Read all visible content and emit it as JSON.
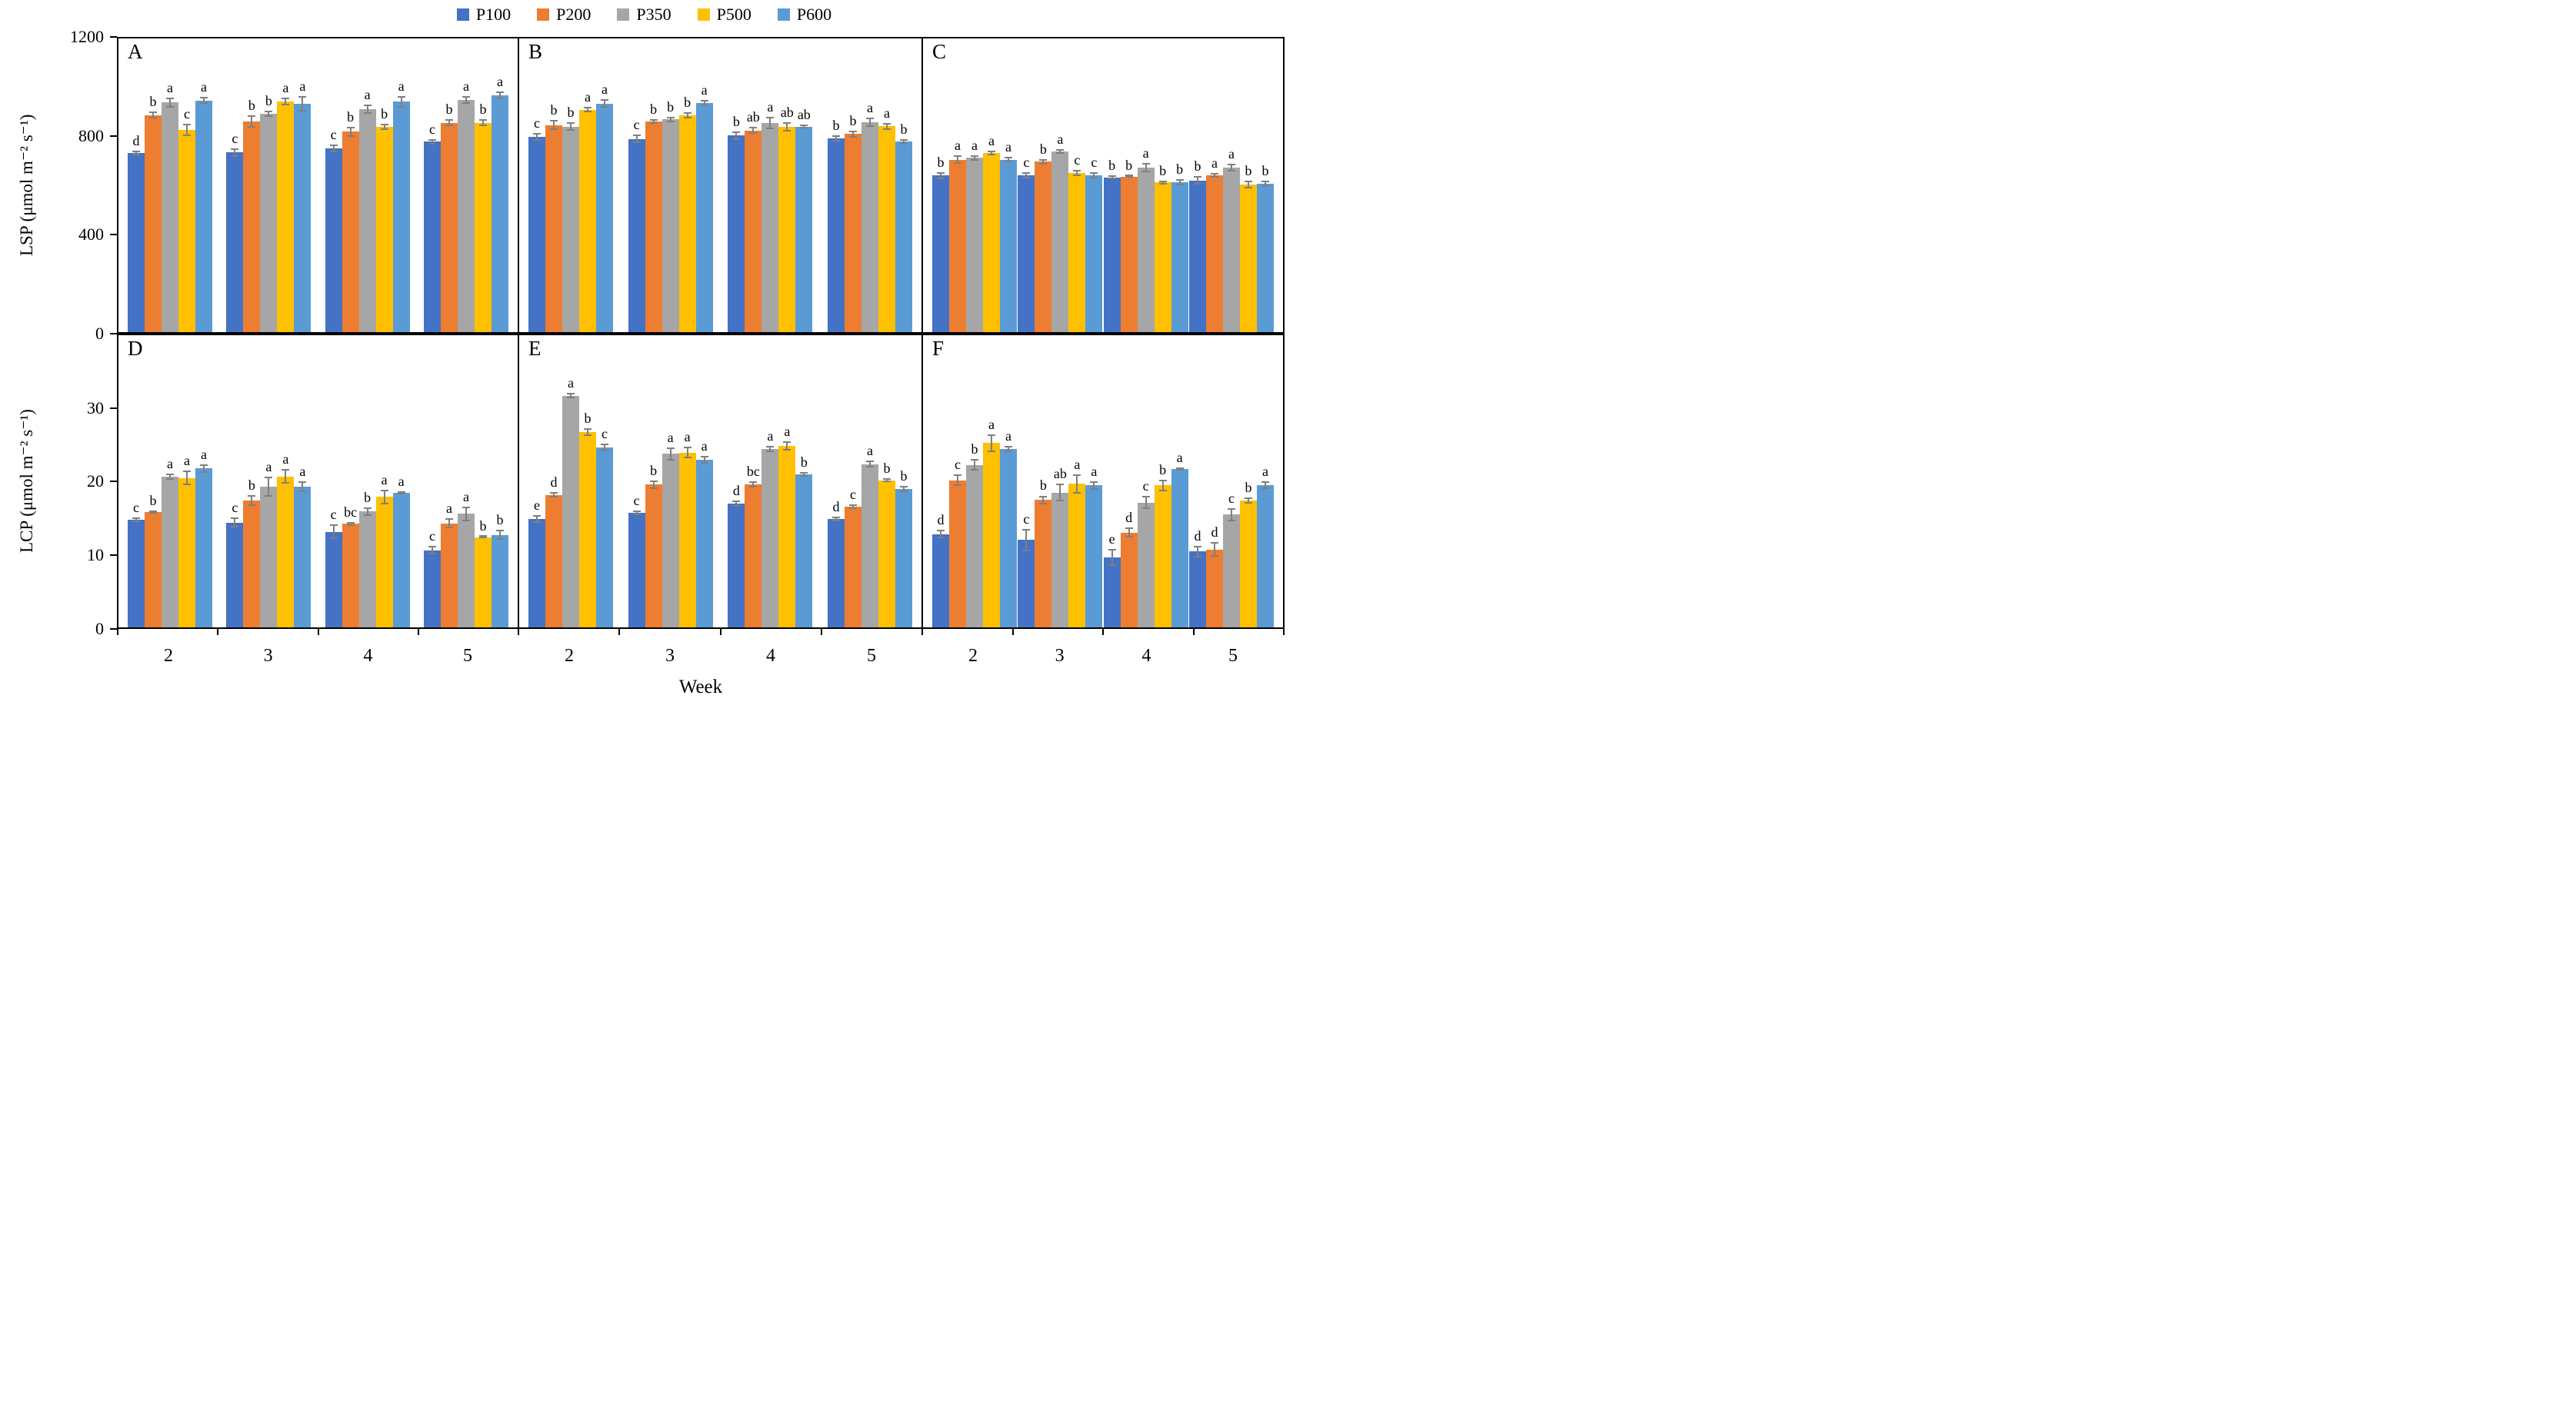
{
  "legend": {
    "items": [
      {
        "label": "P100",
        "color": "#4472C4"
      },
      {
        "label": "P200",
        "color": "#ED7D31"
      },
      {
        "label": "P350",
        "color": "#A6A6A6"
      },
      {
        "label": "P500",
        "color": "#FFC000"
      },
      {
        "label": "P600",
        "color": "#5B9BD5"
      }
    ]
  },
  "axes": {
    "left_top": {
      "label": "LSP (μmol m⁻² s⁻¹)",
      "ticks": [
        0,
        400,
        800,
        1200
      ],
      "max": 1200
    },
    "left_bottom": {
      "label": "LCP (μmol m⁻² s⁻¹)",
      "ticks": [
        0,
        10,
        20,
        30
      ],
      "max": 40
    },
    "x": {
      "label": "Week",
      "categories": [
        "2",
        "3",
        "4",
        "5"
      ]
    }
  },
  "colors": {
    "error_bar": "#7f7f7f",
    "frame": "#000000"
  },
  "chart_data": [
    {
      "type": "bar",
      "id": "A",
      "row": "top",
      "col": 0,
      "metric": "LSP",
      "categories": [
        "2",
        "3",
        "4",
        "5"
      ],
      "series": [
        {
          "name": "P100",
          "values": [
            732,
            734,
            751,
            778
          ],
          "errors": [
            10,
            18,
            15,
            10
          ],
          "letters": [
            "d",
            "c",
            "c",
            "c"
          ]
        },
        {
          "name": "P200",
          "values": [
            887,
            860,
            819,
            856
          ],
          "errors": [
            15,
            25,
            20,
            15
          ],
          "letters": [
            "b",
            "b",
            "b",
            "b"
          ]
        },
        {
          "name": "P350",
          "values": [
            938,
            893,
            911,
            949
          ],
          "errors": [
            20,
            12,
            20,
            15
          ],
          "letters": [
            "a",
            "b",
            "a",
            "a"
          ]
        },
        {
          "name": "P500",
          "values": [
            827,
            942,
            839,
            856
          ],
          "errors": [
            25,
            15,
            12,
            15
          ],
          "letters": [
            "c",
            "a",
            "b",
            "b"
          ]
        },
        {
          "name": "P600",
          "values": [
            947,
            933,
            941,
            968
          ],
          "errors": [
            15,
            30,
            25,
            15
          ],
          "letters": [
            "a",
            "a",
            "a",
            "a"
          ]
        }
      ]
    },
    {
      "type": "bar",
      "id": "B",
      "row": "top",
      "col": 1,
      "metric": "LSP",
      "categories": [
        "2",
        "3",
        "4",
        "5"
      ],
      "series": [
        {
          "name": "P100",
          "values": [
            798,
            790,
            803,
            792
          ],
          "errors": [
            15,
            18,
            18,
            12
          ],
          "letters": [
            "c",
            "c",
            "b",
            "b"
          ]
        },
        {
          "name": "P200",
          "values": [
            846,
            860,
            824,
            809
          ],
          "errors": [
            20,
            10,
            15,
            15
          ],
          "letters": [
            "b",
            "b",
            "ab",
            "b"
          ]
        },
        {
          "name": "P350",
          "values": [
            840,
            869,
            855,
            857
          ],
          "errors": [
            18,
            10,
            25,
            18
          ],
          "letters": [
            "b",
            "b",
            "a",
            "a"
          ]
        },
        {
          "name": "P500",
          "values": [
            909,
            886,
            839,
            841
          ],
          "errors": [
            12,
            12,
            18,
            15
          ],
          "letters": [
            "a",
            "b",
            "ab",
            "a"
          ]
        },
        {
          "name": "P600",
          "values": [
            934,
            936,
            839,
            778
          ],
          "errors": [
            18,
            12,
            8,
            10
          ],
          "letters": [
            "a",
            "a",
            "ab",
            "b"
          ]
        }
      ]
    },
    {
      "type": "bar",
      "id": "C",
      "row": "top",
      "col": 2,
      "metric": "LSP",
      "categories": [
        "2",
        "3",
        "4",
        "5"
      ],
      "series": [
        {
          "name": "P100",
          "values": [
            640,
            640,
            632,
            620
          ],
          "errors": [
            15,
            12,
            8,
            18
          ],
          "letters": [
            "b",
            "c",
            "b",
            "b"
          ]
        },
        {
          "name": "P200",
          "values": [
            705,
            696,
            635,
            640
          ],
          "errors": [
            18,
            12,
            5,
            10
          ],
          "letters": [
            "a",
            "b",
            "b",
            "a"
          ]
        },
        {
          "name": "P350",
          "values": [
            712,
            738,
            672,
            672
          ],
          "errors": [
            12,
            10,
            18,
            15
          ],
          "letters": [
            "a",
            "a",
            "a",
            "a"
          ]
        },
        {
          "name": "P500",
          "values": [
            732,
            651,
            612,
            604
          ],
          "errors": [
            10,
            12,
            8,
            15
          ],
          "letters": [
            "a",
            "c",
            "b",
            "b"
          ]
        },
        {
          "name": "P600",
          "values": [
            705,
            640,
            612,
            606
          ],
          "errors": [
            12,
            12,
            12,
            12
          ],
          "letters": [
            "a",
            "c",
            "b",
            "b"
          ]
        }
      ]
    },
    {
      "type": "bar",
      "id": "D",
      "row": "bottom",
      "col": 0,
      "metric": "LCP",
      "categories": [
        "2",
        "3",
        "4",
        "5"
      ],
      "series": [
        {
          "name": "P100",
          "values": [
            14.8,
            14.4,
            13.1,
            10.6
          ],
          "errors": [
            0.3,
            0.7,
            1.0,
            0.6
          ],
          "letters": [
            "c",
            "c",
            "c",
            "c"
          ]
        },
        {
          "name": "P200",
          "values": [
            15.8,
            17.4,
            14.2,
            14.3
          ],
          "errors": [
            0.2,
            0.7,
            0.3,
            0.7
          ],
          "letters": [
            "b",
            "b",
            "bc",
            "a"
          ]
        },
        {
          "name": "P350",
          "values": [
            20.7,
            19.3,
            15.9,
            15.6
          ],
          "errors": [
            0.4,
            1.4,
            0.6,
            1.0
          ],
          "letters": [
            "a",
            "a",
            "b",
            "a"
          ]
        },
        {
          "name": "P500",
          "values": [
            20.5,
            20.7,
            17.9,
            12.4
          ],
          "errors": [
            1.0,
            1.0,
            1.0,
            0.2
          ],
          "letters": [
            "a",
            "a",
            "a",
            "b"
          ]
        },
        {
          "name": "P600",
          "values": [
            21.8,
            19.3,
            18.5,
            12.7
          ],
          "errors": [
            0.6,
            0.7,
            0.2,
            0.7
          ],
          "letters": [
            "a",
            "a",
            "a",
            "b"
          ]
        }
      ]
    },
    {
      "type": "bar",
      "id": "E",
      "row": "bottom",
      "col": 1,
      "metric": "LCP",
      "categories": [
        "2",
        "3",
        "4",
        "5"
      ],
      "series": [
        {
          "name": "P100",
          "values": [
            14.9,
            15.7,
            17.0,
            14.9
          ],
          "errors": [
            0.5,
            0.3,
            0.4,
            0.3
          ],
          "letters": [
            "e",
            "c",
            "d",
            "d"
          ]
        },
        {
          "name": "P200",
          "values": [
            18.2,
            19.6,
            19.6,
            16.6
          ],
          "errors": [
            0.4,
            0.6,
            0.4,
            0.3
          ],
          "letters": [
            "d",
            "b",
            "bc",
            "c"
          ]
        },
        {
          "name": "P350",
          "values": [
            31.8,
            23.8,
            24.5,
            22.4
          ],
          "errors": [
            0.4,
            0.9,
            0.4,
            0.5
          ],
          "letters": [
            "a",
            "a",
            "a",
            "a"
          ]
        },
        {
          "name": "P500",
          "values": [
            26.8,
            24.0,
            24.9,
            20.2
          ],
          "errors": [
            0.5,
            0.8,
            0.6,
            0.3
          ],
          "letters": [
            "b",
            "a",
            "a",
            "b"
          ]
        },
        {
          "name": "P600",
          "values": [
            24.7,
            23.0,
            21.0,
            19.0
          ],
          "errors": [
            0.5,
            0.5,
            0.3,
            0.4
          ],
          "letters": [
            "c",
            "a",
            "b",
            "b"
          ]
        }
      ]
    },
    {
      "type": "bar",
      "id": "F",
      "row": "bottom",
      "col": 2,
      "metric": "LCP",
      "categories": [
        "2",
        "3",
        "4",
        "5"
      ],
      "series": [
        {
          "name": "P100",
          "values": [
            12.8,
            12.0,
            9.6,
            10.4
          ],
          "errors": [
            0.6,
            1.5,
            1.2,
            0.8
          ],
          "letters": [
            "d",
            "c",
            "e",
            "d"
          ]
        },
        {
          "name": "P200",
          "values": [
            20.2,
            17.5,
            13.0,
            10.7
          ],
          "errors": [
            0.8,
            0.6,
            0.7,
            1.0
          ],
          "letters": [
            "c",
            "b",
            "d",
            "d"
          ]
        },
        {
          "name": "P350",
          "values": [
            22.3,
            18.5,
            17.1,
            15.5
          ],
          "errors": [
            0.8,
            1.2,
            0.9,
            0.9
          ],
          "letters": [
            "b",
            "ab",
            "c",
            "c"
          ]
        },
        {
          "name": "P500",
          "values": [
            25.3,
            19.7,
            19.5,
            17.4
          ],
          "errors": [
            1.2,
            1.3,
            0.8,
            0.4
          ],
          "letters": [
            "a",
            "a",
            "b",
            "b"
          ]
        },
        {
          "name": "P600",
          "values": [
            24.5,
            19.5,
            21.7,
            19.5
          ],
          "errors": [
            0.4,
            0.6,
            0.2,
            0.5
          ],
          "letters": [
            "a",
            "a",
            "a",
            "a"
          ]
        }
      ]
    }
  ]
}
